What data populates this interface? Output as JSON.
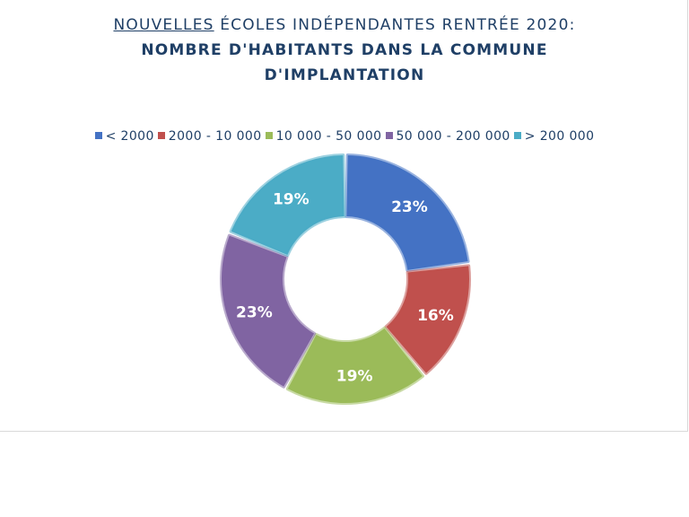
{
  "title": {
    "prefix_underlined": "NOUVELLES",
    "line1_rest": " ÉCOLES INDÉPENDANTES RENTRÉE 2020:",
    "line2": "NOMBRE D'HABITANTS DANS LA COMMUNE",
    "line3": "D'IMPLANTATION"
  },
  "chart_data": {
    "type": "pie",
    "donut": true,
    "legend_position": "top",
    "categories": [
      "< 2000",
      "2000 - 10 000",
      "10 000 - 50 000",
      "50 000 - 200 000",
      "> 200 000"
    ],
    "values": [
      23,
      16,
      19,
      23,
      19
    ],
    "labels": [
      "23%",
      "16%",
      "19%",
      "23%",
      "19%"
    ],
    "colors": [
      "#4472c4",
      "#c0504d",
      "#9bbb59",
      "#8064a2",
      "#4bacc6"
    ]
  }
}
